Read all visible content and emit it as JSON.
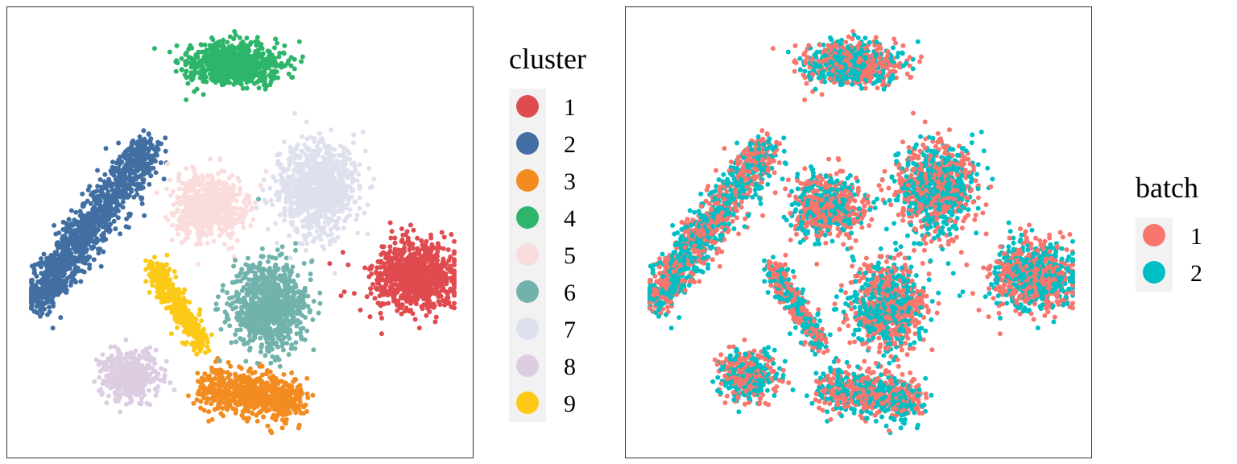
{
  "chart_data": [
    {
      "type": "scatter",
      "title": "",
      "xlabel": "",
      "ylabel": "",
      "legend": {
        "title": "cluster",
        "placement": "right"
      },
      "grid": false,
      "series": [
        {
          "name": "1",
          "color": "#e04b4f",
          "center": [
            505,
            335
          ],
          "spread": [
            52,
            40
          ],
          "count": 900
        },
        {
          "name": "2",
          "color": "#426fa3",
          "center": [
            110,
            275
          ],
          "spread": [
            70,
            100
          ],
          "count": 1200
        },
        {
          "name": "3",
          "color": "#f28c21",
          "center": [
            300,
            505
          ],
          "spread": [
            55,
            35
          ],
          "count": 650
        },
        {
          "name": "4",
          "color": "#2db56a",
          "center": [
            280,
            70
          ],
          "spread": [
            65,
            28
          ],
          "count": 750
        },
        {
          "name": "5",
          "color": "#fbdcdc",
          "center": [
            250,
            247
          ],
          "spread": [
            45,
            38
          ],
          "count": 650
        },
        {
          "name": "6",
          "color": "#71b3ac",
          "center": [
            325,
            370
          ],
          "spread": [
            45,
            55
          ],
          "count": 800
        },
        {
          "name": "7",
          "color": "#dfe0ee",
          "center": [
            385,
            225
          ],
          "spread": [
            50,
            55
          ],
          "count": 900
        },
        {
          "name": "8",
          "color": "#dccde3",
          "center": [
            153,
            457
          ],
          "spread": [
            33,
            30
          ],
          "count": 450
        },
        {
          "name": "9",
          "color": "#fbc916",
          "center": [
            215,
            370
          ],
          "spread": [
            22,
            50
          ],
          "count": 400
        }
      ]
    },
    {
      "type": "scatter",
      "title": "",
      "xlabel": "",
      "ylabel": "",
      "legend": {
        "title": "batch",
        "placement": "right"
      },
      "grid": false,
      "series": [
        {
          "name": "1",
          "color": "#f8766d"
        },
        {
          "name": "2",
          "color": "#00bfc4"
        }
      ]
    }
  ]
}
